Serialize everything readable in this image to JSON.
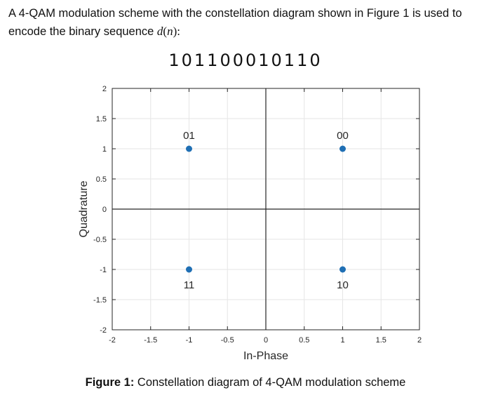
{
  "problem": {
    "line1": "A 4-QAM modulation scheme with the constellation diagram shown in Figure 1 is used to",
    "line2_prefix": "encode the binary sequence ",
    "symbol_d": "d",
    "symbol_open": "(",
    "symbol_n": "n",
    "symbol_close": "):"
  },
  "sequence": "101100010110",
  "chart_data": {
    "type": "scatter",
    "xlabel": "In-Phase",
    "ylabel": "Quadrature",
    "xlim": [
      -2,
      2
    ],
    "ylim": [
      -2,
      2
    ],
    "xticks": [
      "-2",
      "-1.5",
      "-1",
      "-0.5",
      "0",
      "0.5",
      "1",
      "1.5",
      "2"
    ],
    "yticks": [
      "-2",
      "-1.5",
      "-1",
      "-0.5",
      "0",
      "0.5",
      "1",
      "1.5",
      "2"
    ],
    "grid": true,
    "axis_lines_through_origin": true,
    "point_color": "#1f6fb4",
    "points": [
      {
        "x": -1,
        "y": 1,
        "label": "01",
        "label_position": "above"
      },
      {
        "x": 1,
        "y": 1,
        "label": "00",
        "label_position": "above"
      },
      {
        "x": -1,
        "y": -1,
        "label": "11",
        "label_position": "below"
      },
      {
        "x": 1,
        "y": -1,
        "label": "10",
        "label_position": "below"
      }
    ]
  },
  "caption": {
    "prefix": "Figure 1:",
    "text": " Constellation diagram of 4-QAM modulation scheme"
  }
}
